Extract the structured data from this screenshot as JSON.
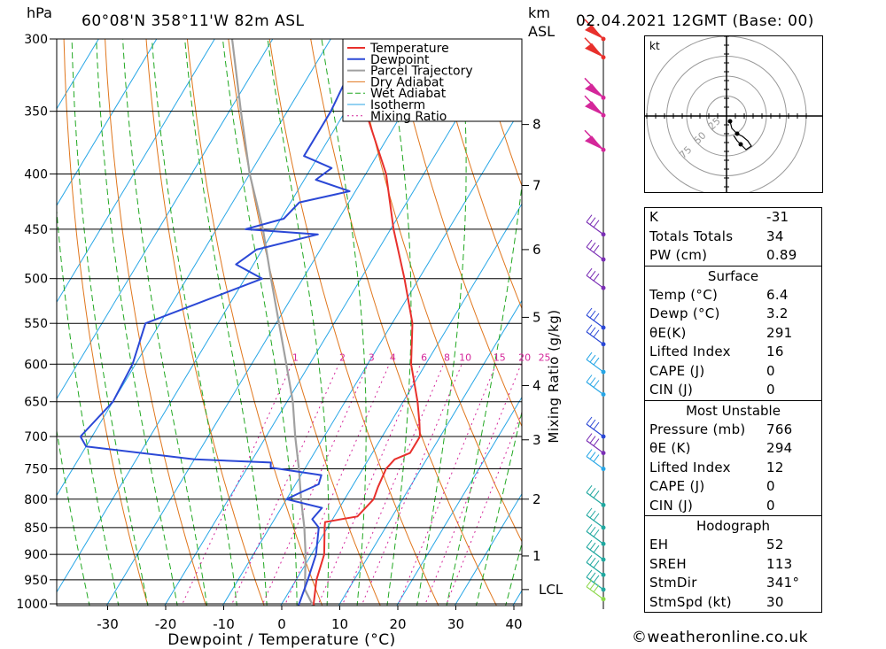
{
  "header": {
    "unit_left": "hPa",
    "location": "60°08'N  358°11'W  82m  ASL",
    "unit_km": "km",
    "unit_asl": "ASL",
    "datetime": "02.04.2021  12GMT  (Base: 00)"
  },
  "footer": "©weatheronline.co.uk",
  "hodograph": {
    "unit": "kt",
    "rings": [
      "25",
      "50",
      "75"
    ]
  },
  "colors": {
    "temperature": "#e8302c",
    "dewpoint": "#2b48d6",
    "parcel": "#a0a0a0",
    "dry_adiabat": "#e0761c",
    "wet_adiabat": "#21a821",
    "isotherm": "#27a6e6",
    "mixing_ratio": "#d4279a"
  },
  "chart_data": {
    "type": "line",
    "subtype": "skew-T log-P sounding",
    "xlabel": "Dewpoint  /  Temperature  (°C)",
    "ylabel_left": "hPa",
    "ylabel_right": "Mixing Ratio  (g/kg)",
    "x_ticks": [
      "-30",
      "-20",
      "-10",
      "0",
      "10",
      "20",
      "30",
      "40"
    ],
    "pressure_ticks": [
      "300",
      "350",
      "400",
      "450",
      "500",
      "550",
      "600",
      "650",
      "700",
      "750",
      "800",
      "850",
      "900",
      "950",
      "1000"
    ],
    "km_ticks": [
      {
        "label": "8",
        "p": 360
      },
      {
        "label": "7",
        "p": 410
      },
      {
        "label": "6",
        "p": 470
      },
      {
        "label": "5",
        "p": 543
      },
      {
        "label": "4",
        "p": 628
      },
      {
        "label": "3",
        "p": 705
      },
      {
        "label": "2",
        "p": 800
      },
      {
        "label": "1",
        "p": 903
      },
      {
        "label": "LCL",
        "p": 970
      }
    ],
    "mixing_ratio_labels": [
      "1",
      "2",
      "3",
      "4",
      "6",
      "8",
      "10",
      "15",
      "20",
      "25"
    ],
    "legend": [
      "Temperature",
      "Dewpoint",
      "Parcel Trajectory",
      "Dry Adiabat",
      "Wet Adiabat",
      "Isotherm",
      "Mixing Ratio"
    ],
    "series": [
      {
        "name": "Temperature",
        "points": [
          [
            1013,
            6.4
          ],
          [
            1000,
            5.5
          ],
          [
            950,
            3.5
          ],
          [
            900,
            2.2
          ],
          [
            850,
            -0.5
          ],
          [
            840,
            -1.0
          ],
          [
            830,
            4.0
          ],
          [
            800,
            5.0
          ],
          [
            780,
            4.5
          ],
          [
            750,
            4.0
          ],
          [
            735,
            4.5
          ],
          [
            725,
            6.5
          ],
          [
            700,
            6.5
          ],
          [
            680,
            5.0
          ],
          [
            650,
            2.5
          ],
          [
            600,
            -2.5
          ],
          [
            550,
            -6.5
          ],
          [
            500,
            -12.5
          ],
          [
            450,
            -19.5
          ],
          [
            400,
            -26.5
          ],
          [
            350,
            -36.5
          ],
          [
            300,
            -46.0
          ]
        ]
      },
      {
        "name": "Dewpoint",
        "points": [
          [
            1013,
            3.2
          ],
          [
            1000,
            3.0
          ],
          [
            950,
            2.0
          ],
          [
            900,
            0.8
          ],
          [
            850,
            -1.5
          ],
          [
            835,
            -3.5
          ],
          [
            815,
            -3.0
          ],
          [
            800,
            -10.0
          ],
          [
            790,
            -8.5
          ],
          [
            775,
            -6.0
          ],
          [
            760,
            -6.5
          ],
          [
            748,
            -16.0
          ],
          [
            740,
            -16.5
          ],
          [
            735,
            -30.0
          ],
          [
            715,
            -50.0
          ],
          [
            700,
            -52.0
          ],
          [
            650,
            -50.0
          ],
          [
            600,
            -50.5
          ],
          [
            550,
            -52.5
          ],
          [
            500,
            -37.0
          ],
          [
            485,
            -43.0
          ],
          [
            470,
            -41.0
          ],
          [
            455,
            -32.0
          ],
          [
            450,
            -45.0
          ],
          [
            440,
            -39.5
          ],
          [
            425,
            -38.5
          ],
          [
            415,
            -31.0
          ],
          [
            405,
            -38.0
          ],
          [
            395,
            -36.5
          ],
          [
            385,
            -42.5
          ],
          [
            350,
            -42.5
          ],
          [
            300,
            -44.0
          ]
        ]
      },
      {
        "name": "Parcel Trajectory",
        "points": [
          [
            1013,
            6.4
          ],
          [
            970,
            2.5
          ],
          [
            900,
            -1.0
          ],
          [
            850,
            -4.0
          ],
          [
            800,
            -7.5
          ],
          [
            750,
            -11.0
          ],
          [
            700,
            -15.0
          ],
          [
            650,
            -19.0
          ],
          [
            600,
            -24.0
          ],
          [
            550,
            -29.5
          ],
          [
            500,
            -35.5
          ],
          [
            450,
            -42.0
          ],
          [
            400,
            -50.0
          ],
          [
            350,
            -58.0
          ],
          [
            300,
            -67.0
          ]
        ]
      }
    ]
  },
  "indices": {
    "general": [
      {
        "label": "K",
        "value": "-31"
      },
      {
        "label": "Totals Totals",
        "value": "34"
      },
      {
        "label": "PW (cm)",
        "value": "0.89"
      }
    ],
    "surface_title": "Surface",
    "surface": [
      {
        "label": "Temp (°C)",
        "value": "6.4"
      },
      {
        "label": "Dewp (°C)",
        "value": "3.2"
      },
      {
        "label": "θE(K)",
        "value": "291"
      },
      {
        "label": "Lifted Index",
        "value": "16"
      },
      {
        "label": "CAPE (J)",
        "value": "0"
      },
      {
        "label": "CIN (J)",
        "value": "0"
      }
    ],
    "mu_title": "Most Unstable",
    "most_unstable": [
      {
        "label": "Pressure (mb)",
        "value": "766"
      },
      {
        "label": "θE (K)",
        "value": "294"
      },
      {
        "label": "Lifted Index",
        "value": "12"
      },
      {
        "label": "CAPE (J)",
        "value": "0"
      },
      {
        "label": "CIN (J)",
        "value": "0"
      }
    ],
    "hodo_title": "Hodograph",
    "hodograph": [
      {
        "label": "EH",
        "value": "52"
      },
      {
        "label": "SREH",
        "value": "113"
      },
      {
        "label": "StmDir",
        "value": "341°"
      },
      {
        "label": "StmSpd (kt)",
        "value": "30"
      }
    ]
  }
}
